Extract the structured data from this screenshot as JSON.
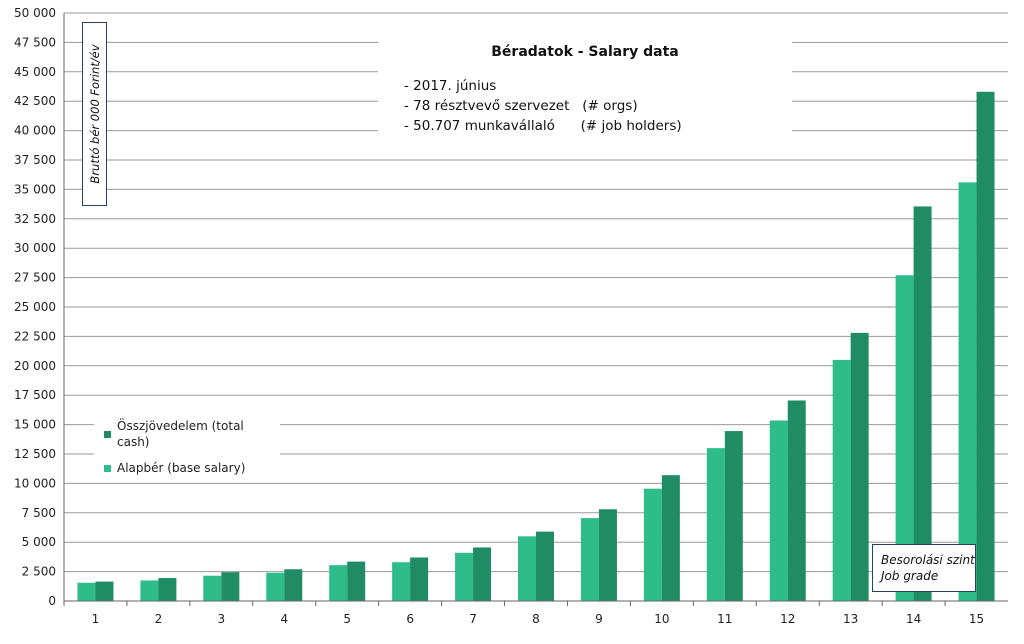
{
  "chart_data": {
    "type": "bar",
    "title": "Béradatok - Salary data",
    "subtitle_lines": [
      "- 2017. június",
      "- 78 résztvevő szervezet   (# orgs)",
      "- 50.707 munkavállaló      (# job holders)"
    ],
    "ylabel": "Bruttó bér 000 Forint/év",
    "xlabel_lines": [
      "Besorolási szint",
      "Job grade"
    ],
    "categories": [
      "1",
      "2",
      "3",
      "4",
      "5",
      "6",
      "7",
      "8",
      "9",
      "10",
      "11",
      "12",
      "13",
      "14",
      "15"
    ],
    "series": [
      {
        "name": "Alapbér (base salary)",
        "color": "#2ebd8a",
        "values": [
          1550,
          1750,
          2150,
          2400,
          3050,
          3300,
          4100,
          5500,
          7050,
          9550,
          13000,
          15350,
          20500,
          27700,
          35600
        ]
      },
      {
        "name": "Összjövedelem (total cash)",
        "color": "#1f8c64",
        "values": [
          1650,
          1950,
          2450,
          2700,
          3350,
          3700,
          4550,
          5900,
          7800,
          10700,
          14450,
          17050,
          22800,
          33550,
          43300
        ]
      }
    ],
    "legend_order": [
      1,
      0
    ],
    "ylim": [
      0,
      50000
    ],
    "ytick_step": 2500,
    "yticks": [
      "0",
      "2 500",
      "5 000",
      "7 500",
      "10 000",
      "12 500",
      "15 000",
      "17 500",
      "20 000",
      "22 500",
      "25 000",
      "27 500",
      "30 000",
      "32 500",
      "35 000",
      "37 500",
      "40 000",
      "42 500",
      "45 000",
      "47 500",
      "50 000"
    ],
    "grid": "horizontal",
    "legend_position": "lower-left"
  }
}
